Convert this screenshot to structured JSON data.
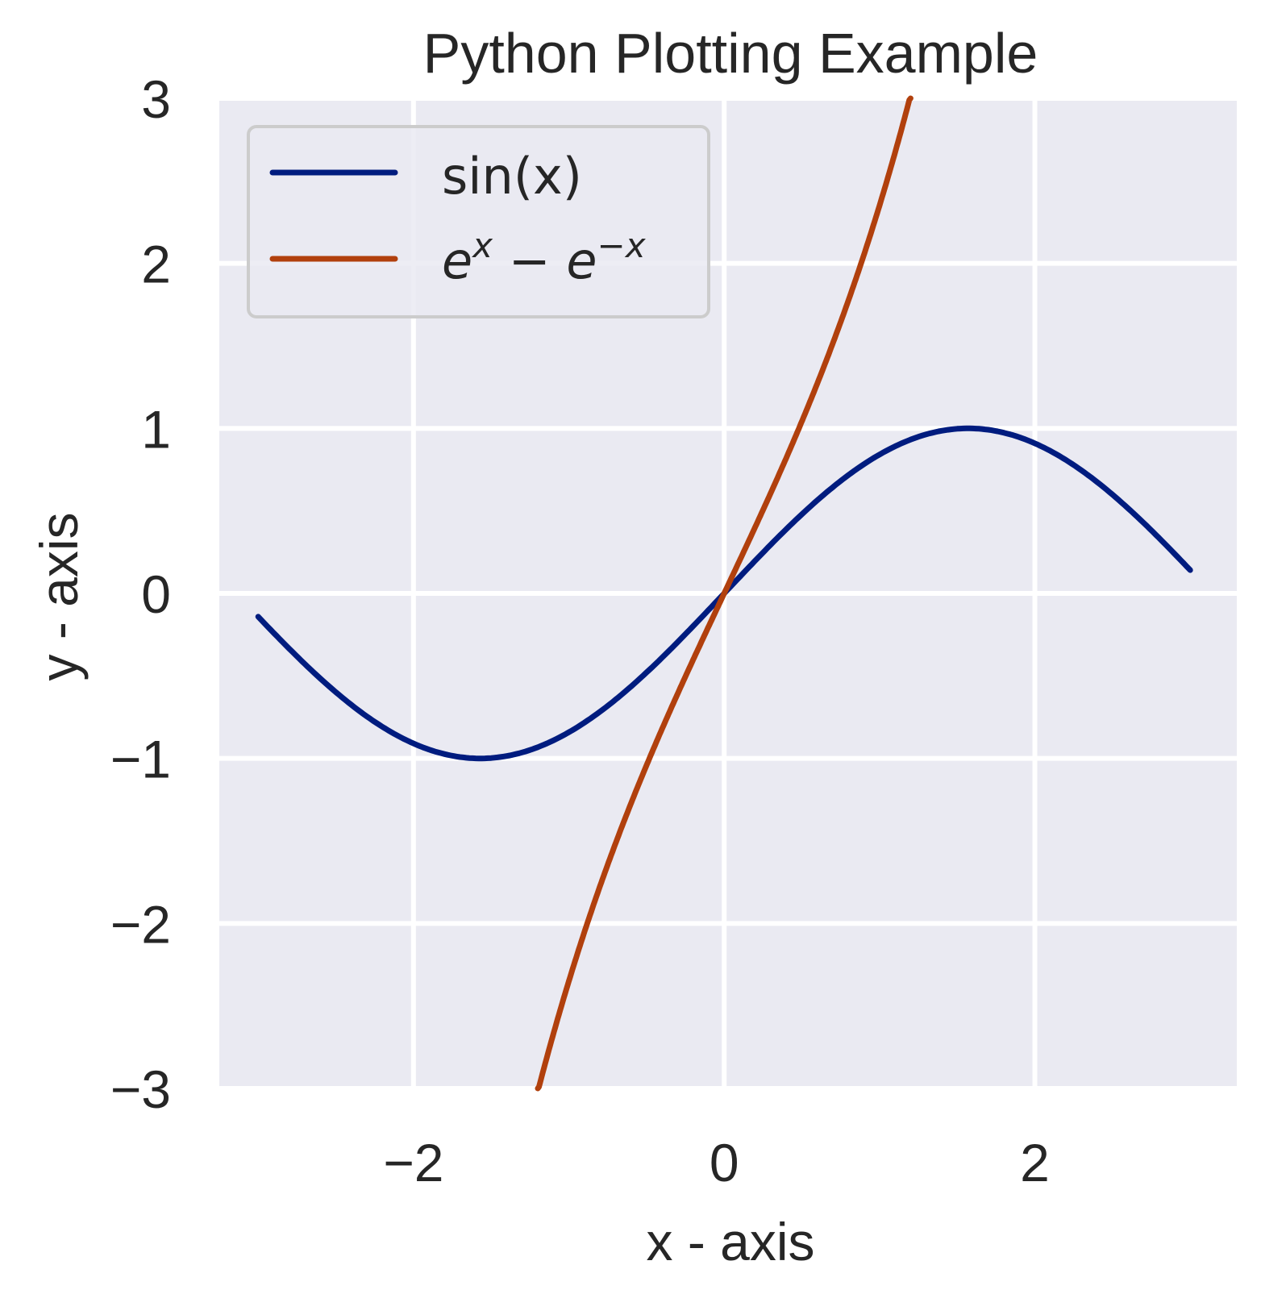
{
  "chart_data": {
    "type": "line",
    "title": "Python Plotting Example",
    "xlabel": "x - axis",
    "ylabel": "y - axis",
    "xlim": [
      -3.25,
      3.3
    ],
    "ylim": [
      -3,
      3
    ],
    "xticks": [
      -2,
      0,
      2
    ],
    "xtick_labels": [
      "−2",
      "0",
      "2"
    ],
    "yticks": [
      -3,
      -2,
      -1,
      0,
      1,
      2,
      3
    ],
    "ytick_labels": [
      "−3",
      "−2",
      "−1",
      "0",
      "1",
      "2",
      "3"
    ],
    "grid": true,
    "background": "#eaeaf2",
    "legend_position": "top-left",
    "series": [
      {
        "name": "sin(x)",
        "color": "#001c7f",
        "x": [
          -3.0,
          -2.5,
          -2.0,
          -1.57,
          -1.0,
          -0.5,
          0.0,
          0.5,
          1.0,
          1.57,
          2.0,
          2.5,
          3.0
        ],
        "y": [
          -0.141,
          -0.598,
          -0.909,
          -1.0,
          -0.841,
          -0.479,
          0.0,
          0.479,
          0.841,
          1.0,
          0.909,
          0.598,
          0.141
        ]
      },
      {
        "name": "e^x − e^−x",
        "color": "#b1400d",
        "x": [
          -1.2,
          -1.0,
          -0.8,
          -0.6,
          -0.4,
          -0.2,
          0.0,
          0.2,
          0.4,
          0.6,
          0.8,
          1.0,
          1.2
        ],
        "y": [
          -3.02,
          -2.35,
          -1.78,
          -1.27,
          -0.82,
          -0.4,
          0.0,
          0.4,
          0.82,
          1.27,
          1.78,
          2.35,
          3.02
        ]
      }
    ]
  }
}
